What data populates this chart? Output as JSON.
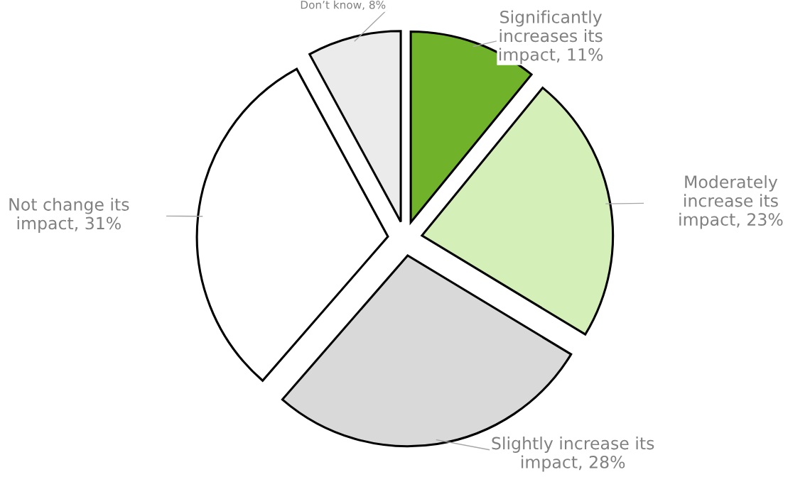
{
  "chart_data": {
    "type": "pie",
    "categories": [
      "Significantly increases its impact",
      "Moderately increase its impact",
      "Slightly increase its impact",
      "Not change its impact",
      "Don’t know"
    ],
    "values": [
      11,
      23,
      28,
      31,
      8
    ],
    "value_labels": [
      "11%",
      "23%",
      "28%",
      "31%",
      "8%"
    ],
    "colors": [
      "#70b22a",
      "#d5efb8",
      "#d9d9d9",
      "#ffffff",
      "#ebebeb"
    ],
    "legend": false
  }
}
